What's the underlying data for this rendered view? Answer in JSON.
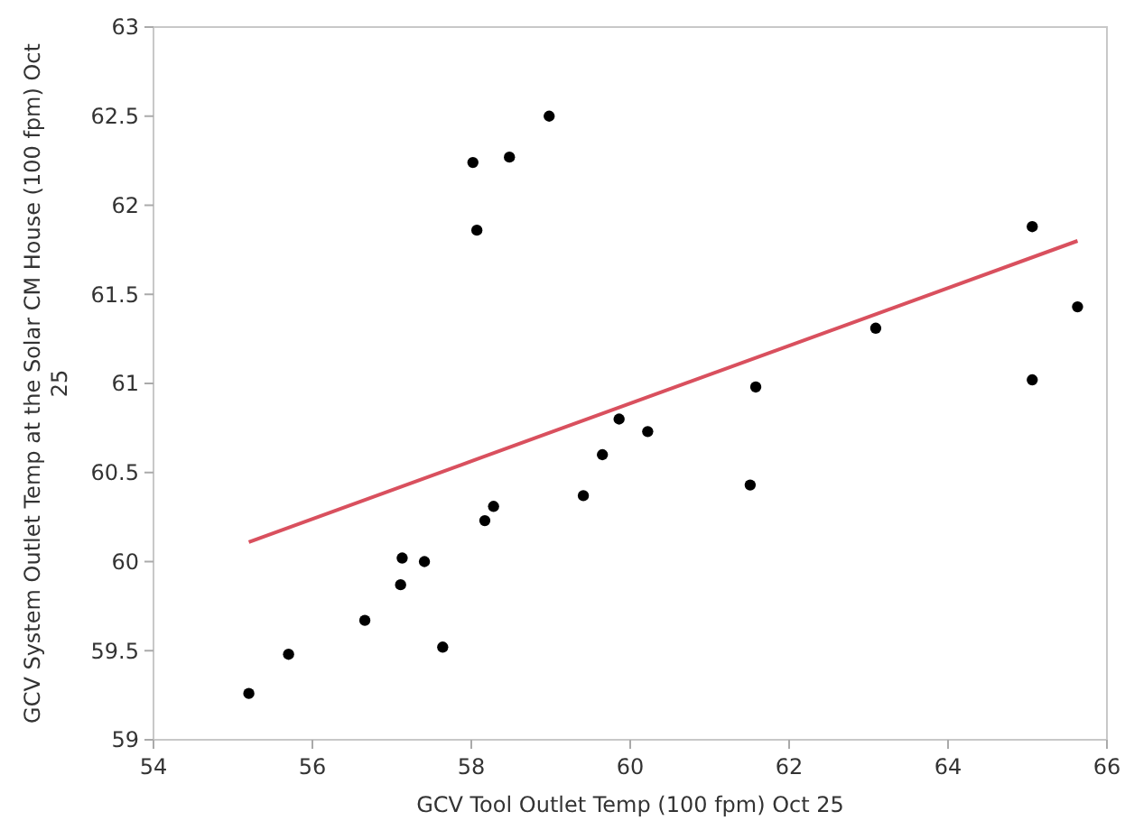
{
  "chart_data": {
    "type": "scatter",
    "xlabel": "GCV Tool Outlet Temp  (100 fpm) Oct 25",
    "ylabel": "GCV System Outlet Temp at the Solar CM House   (100 fpm) Oct 25",
    "xlim": [
      54,
      66
    ],
    "xticks": [
      54,
      56,
      58,
      60,
      62,
      64,
      66
    ],
    "ylim": [
      59,
      63
    ],
    "yticks": [
      59,
      59.5,
      60,
      60.5,
      61,
      61.5,
      62,
      62.5,
      63
    ],
    "grid": false,
    "series": [
      {
        "color": "#000000",
        "marker": "circle",
        "x": [
          55.2,
          55.7,
          56.66,
          57.13,
          57.11,
          57.41,
          57.64,
          58.02,
          58.07,
          58.17,
          58.28,
          58.48,
          58.98,
          59.41,
          59.65,
          59.86,
          60.22,
          61.51,
          61.58,
          63.09,
          65.06,
          65.06,
          65.63
        ],
        "values": [
          59.26,
          59.48,
          59.67,
          60.02,
          59.87,
          60.0,
          59.52,
          62.24,
          61.86,
          60.23,
          60.31,
          62.27,
          62.5,
          60.37,
          60.6,
          60.8,
          60.73,
          60.43,
          60.98,
          61.31,
          61.88,
          61.02,
          61.43
        ]
      },
      {
        "type": "line",
        "color": "#d9505e",
        "line_style": "solid",
        "x": [
          55.2,
          65.63
        ],
        "values": [
          60.11,
          61.8
        ]
      }
    ]
  }
}
